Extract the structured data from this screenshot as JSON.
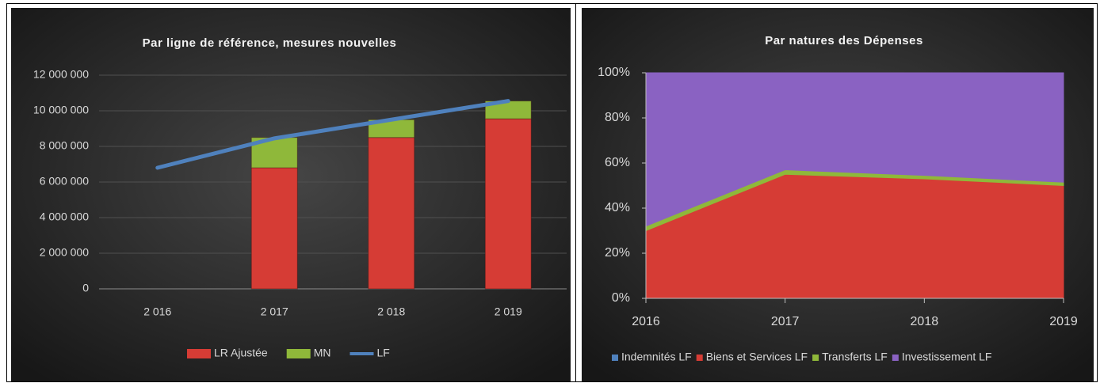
{
  "chart_data": [
    {
      "type": "bar",
      "title": "Par ligne de référence, mesures nouvelles",
      "categories": [
        "2 016",
        "2 017",
        "2 018",
        "2 019"
      ],
      "series": [
        {
          "name": "LR Ajustée",
          "color": "#d63c35",
          "values": [
            null,
            6800000,
            8500000,
            9550000
          ]
        },
        {
          "name": "MN",
          "color": "#8fb83a",
          "values": [
            null,
            1700000,
            1000000,
            1000000
          ]
        },
        {
          "name": "LF",
          "color": "#4f81bd",
          "type": "line",
          "values": [
            6800000,
            8450000,
            9500000,
            10550000
          ]
        }
      ],
      "ylim": [
        0,
        12000000
      ],
      "yticks": [
        {
          "value": 0,
          "label": "0"
        },
        {
          "value": 2000000,
          "label": "2 000 000"
        },
        {
          "value": 4000000,
          "label": "4 000 000"
        },
        {
          "value": 6000000,
          "label": "6 000 000"
        },
        {
          "value": 8000000,
          "label": "8 000 000"
        },
        {
          "value": 10000000,
          "label": "10 000 000"
        },
        {
          "value": 12000000,
          "label": "12 000 000"
        }
      ],
      "grid": true,
      "legend": "bottom"
    },
    {
      "type": "area",
      "title": "Par natures des Dépenses",
      "x": [
        2016,
        2017,
        2018,
        2019
      ],
      "series": [
        {
          "name": "Indemnités LF",
          "color": "#4f81bd",
          "values": [
            0,
            0,
            0,
            0
          ]
        },
        {
          "name": "Biens et Services LF",
          "color": "#d63c35",
          "values": [
            30,
            55,
            53,
            50
          ]
        },
        {
          "name": "Transferts LF",
          "color": "#8fb83a",
          "values": [
            2,
            2,
            1.5,
            1.5
          ]
        },
        {
          "name": "Investissement LF",
          "color": "#8a62c2",
          "values": [
            68,
            43,
            45.5,
            48.5
          ]
        }
      ],
      "xlim": [
        2016,
        2019
      ],
      "xticks": [
        2016,
        2017,
        2018,
        2019
      ],
      "ylim": [
        0,
        100
      ],
      "yticks": [
        {
          "value": 0,
          "label": "0%"
        },
        {
          "value": 20,
          "label": "20%"
        },
        {
          "value": 40,
          "label": "40%"
        },
        {
          "value": 60,
          "label": "60%"
        },
        {
          "value": 80,
          "label": "80%"
        },
        {
          "value": 100,
          "label": "100%"
        }
      ],
      "grid": false,
      "stacked": true,
      "legend": "bottom"
    }
  ]
}
